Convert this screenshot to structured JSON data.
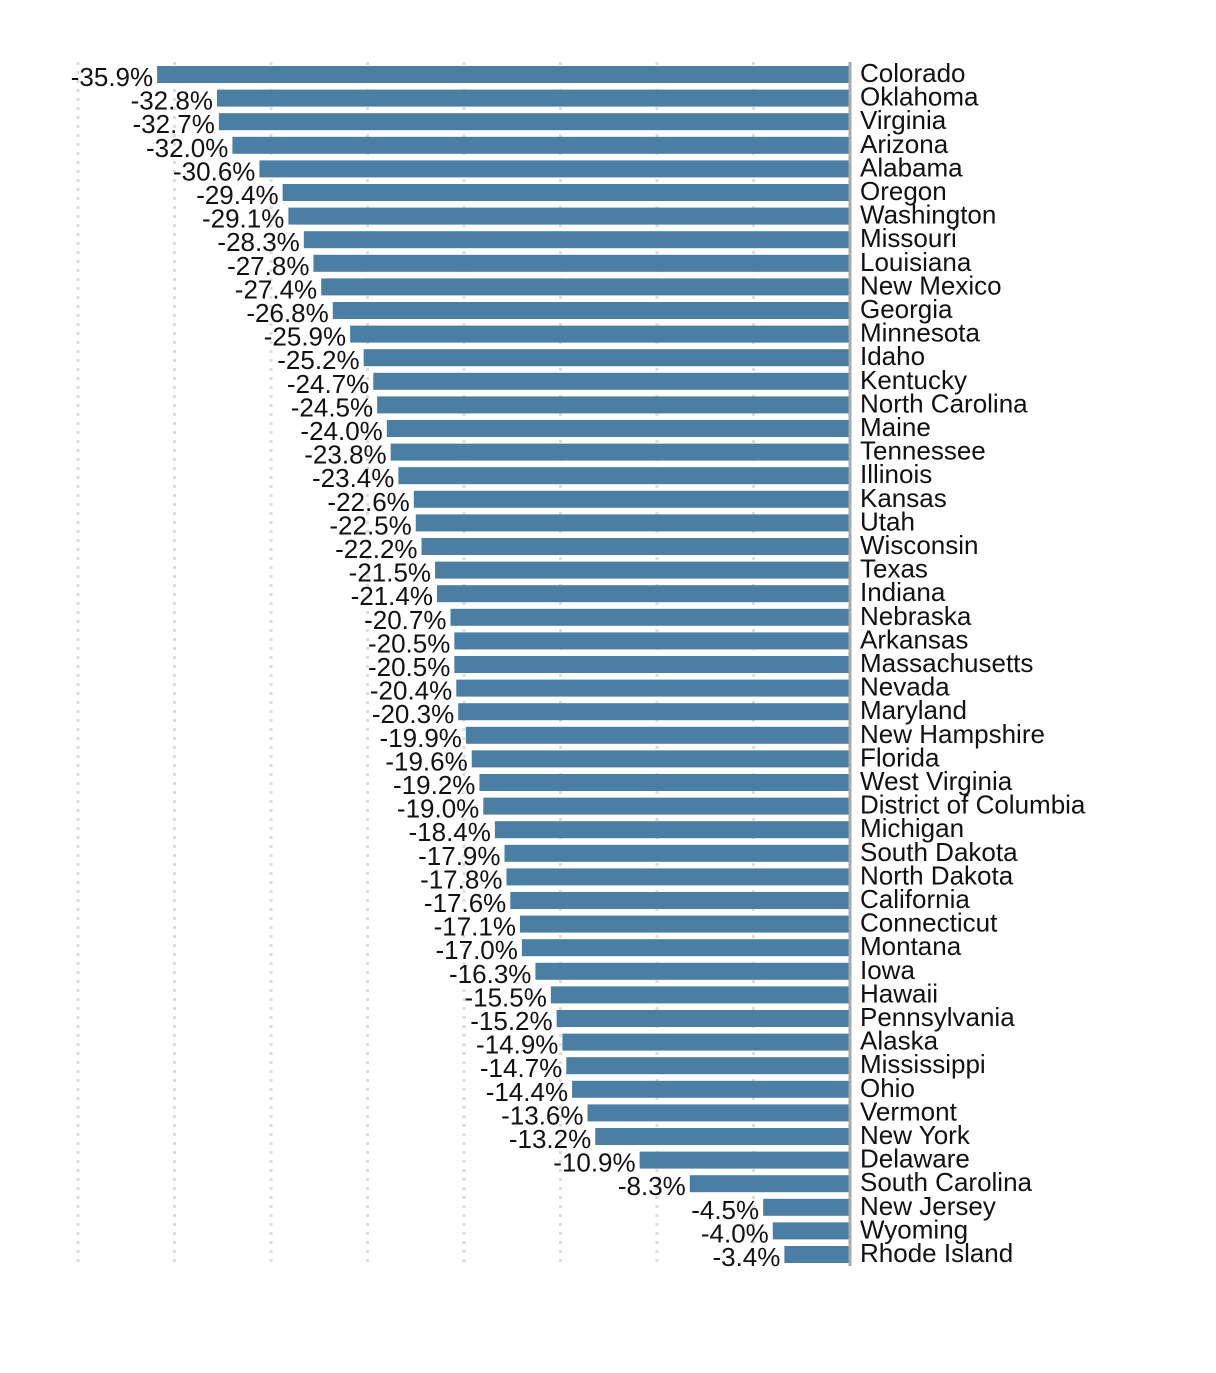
{
  "chart_data": {
    "type": "bar",
    "orientation": "horizontal",
    "categories": [
      "Colorado",
      "Oklahoma",
      "Virginia",
      "Arizona",
      "Alabama",
      "Oregon",
      "Washington",
      "Missouri",
      "Louisiana",
      "New Mexico",
      "Georgia",
      "Minnesota",
      "Idaho",
      "Kentucky",
      "North Carolina",
      "Maine",
      "Tennessee",
      "Illinois",
      "Kansas",
      "Utah",
      "Wisconsin",
      "Texas",
      "Indiana",
      "Nebraska",
      "Arkansas",
      "Massachusetts",
      "Nevada",
      "Maryland",
      "New Hampshire",
      "Florida",
      "West Virginia",
      "District of Columbia",
      "Michigan",
      "South Dakota",
      "North Dakota",
      "California",
      "Connecticut",
      "Montana",
      "Iowa",
      "Hawaii",
      "Pennsylvania",
      "Alaska",
      "Mississippi",
      "Ohio",
      "Vermont",
      "New York",
      "Delaware",
      "South Carolina",
      "New Jersey",
      "Wyoming",
      "Rhode Island"
    ],
    "values": [
      -35.9,
      -32.8,
      -32.7,
      -32.0,
      -30.6,
      -29.4,
      -29.1,
      -28.3,
      -27.8,
      -27.4,
      -26.8,
      -25.9,
      -25.2,
      -24.7,
      -24.5,
      -24.0,
      -23.8,
      -23.4,
      -22.6,
      -22.5,
      -22.2,
      -21.5,
      -21.4,
      -20.7,
      -20.5,
      -20.5,
      -20.4,
      -20.3,
      -19.9,
      -19.6,
      -19.2,
      -19.0,
      -18.4,
      -17.9,
      -17.8,
      -17.6,
      -17.1,
      -17.0,
      -16.3,
      -15.5,
      -15.2,
      -14.9,
      -14.7,
      -14.4,
      -13.6,
      -13.2,
      -10.9,
      -8.3,
      -4.5,
      -4.0,
      -3.4
    ],
    "value_labels": [
      "-35.9%",
      "-32.8%",
      "-32.7%",
      "-32.0%",
      "-30.6%",
      "-29.4%",
      "-29.1%",
      "-28.3%",
      "-27.8%",
      "-27.4%",
      "-26.8%",
      "-25.9%",
      "-25.2%",
      "-24.7%",
      "-24.5%",
      "-24.0%",
      "-23.8%",
      "-23.4%",
      "-22.6%",
      "-22.5%",
      "-22.2%",
      "-21.5%",
      "-21.4%",
      "-20.7%",
      "-20.5%",
      "-20.5%",
      "-20.4%",
      "-20.3%",
      "-19.9%",
      "-19.6%",
      "-19.2%",
      "-19.0%",
      "-18.4%",
      "-17.9%",
      "-17.8%",
      "-17.6%",
      "-17.1%",
      "-17.0%",
      "-16.3%",
      "-15.5%",
      "-15.2%",
      "-14.9%",
      "-14.7%",
      "-14.4%",
      "-13.6%",
      "-13.2%",
      "-10.9%",
      "-8.3%",
      "-4.5%",
      "-4.0%",
      "-3.4%"
    ],
    "xlim": [
      -40,
      0
    ],
    "gridlines": [
      -40,
      -35,
      -30,
      -25,
      -20,
      -15,
      -10,
      -5
    ],
    "grid": true,
    "legend": "none",
    "title": "",
    "xlabel": "",
    "ylabel": "",
    "bar_color": "#4a7fa3",
    "grid_color": "#dddddd",
    "axis_color": "#aaaaaa"
  }
}
